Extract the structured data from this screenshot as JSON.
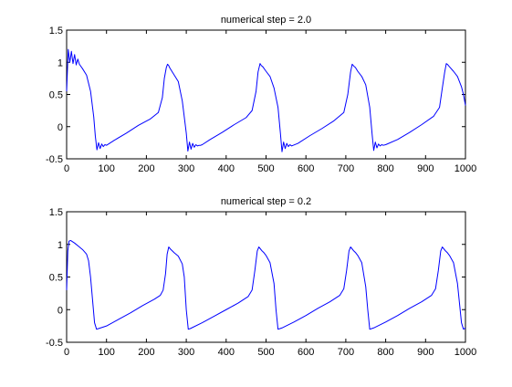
{
  "chart_data": [
    {
      "type": "line",
      "title": "numerical step = 2.0",
      "xlabel": "",
      "ylabel": "",
      "xlim": [
        0,
        1000
      ],
      "ylim": [
        -0.5,
        1.5
      ],
      "x_ticks": [
        0,
        100,
        200,
        300,
        400,
        500,
        600,
        700,
        800,
        900,
        1000
      ],
      "y_ticks": [
        -0.5,
        0,
        0.5,
        1,
        1.5
      ],
      "x_tick_labels": [
        "0",
        "100",
        "200",
        "300",
        "400",
        "500",
        "600",
        "700",
        "800",
        "900",
        "1000"
      ],
      "y_tick_labels": [
        "-0.5",
        "0",
        "0.5",
        "1",
        "1.5"
      ],
      "grid": false,
      "line_color": "#0000ff",
      "series": [
        {
          "x": [
            0,
            4,
            8,
            12,
            16,
            20,
            24,
            28,
            32,
            40,
            50,
            60,
            68,
            72,
            76,
            80,
            84,
            88,
            92,
            96,
            100,
            120,
            150,
            180,
            210,
            230,
            240,
            245,
            250,
            253,
            256,
            258,
            262,
            270,
            280,
            290,
            300,
            304,
            308,
            312,
            316,
            320,
            324,
            328,
            332,
            336,
            340,
            360,
            390,
            420,
            450,
            465,
            475,
            480,
            485,
            488,
            492,
            500,
            510,
            520,
            530,
            536,
            540,
            544,
            548,
            552,
            556,
            560,
            564,
            568,
            580,
            610,
            640,
            670,
            695,
            705,
            712,
            716,
            720,
            724,
            730,
            740,
            750,
            760,
            766,
            770,
            774,
            778,
            782,
            786,
            790,
            794,
            800,
            830,
            860,
            890,
            920,
            935,
            942,
            948,
            952,
            956,
            960,
            970,
            980,
            990,
            995,
            1000
          ],
          "y": [
            0.55,
            1.2,
            1.0,
            1.17,
            0.98,
            1.12,
            0.96,
            1.05,
            0.97,
            0.9,
            0.8,
            0.55,
            0.15,
            -0.15,
            -0.36,
            -0.25,
            -0.34,
            -0.27,
            -0.31,
            -0.28,
            -0.29,
            -0.21,
            -0.1,
            0.02,
            0.12,
            0.22,
            0.45,
            0.75,
            0.92,
            0.97,
            0.95,
            0.92,
            0.88,
            0.8,
            0.7,
            0.4,
            -0.1,
            -0.38,
            -0.24,
            -0.35,
            -0.26,
            -0.32,
            -0.28,
            -0.3,
            -0.29,
            -0.29,
            -0.28,
            -0.2,
            -0.09,
            0.03,
            0.14,
            0.25,
            0.55,
            0.85,
            0.98,
            0.95,
            0.93,
            0.86,
            0.78,
            0.6,
            0.3,
            -0.1,
            -0.39,
            -0.24,
            -0.34,
            -0.26,
            -0.31,
            -0.28,
            -0.3,
            -0.29,
            -0.26,
            -0.14,
            -0.03,
            0.09,
            0.22,
            0.5,
            0.85,
            0.97,
            0.94,
            0.92,
            0.86,
            0.78,
            0.65,
            0.3,
            -0.12,
            -0.37,
            -0.24,
            -0.33,
            -0.27,
            -0.3,
            -0.28,
            -0.29,
            -0.28,
            -0.2,
            -0.09,
            0.03,
            0.16,
            0.3,
            0.6,
            0.85,
            0.98,
            0.96,
            0.93,
            0.86,
            0.78,
            0.62,
            0.5,
            0.33
          ]
        }
      ]
    },
    {
      "type": "line",
      "title": "numerical step = 0.2",
      "xlabel": "",
      "ylabel": "",
      "xlim": [
        0,
        1000
      ],
      "ylim": [
        -0.5,
        1.5
      ],
      "x_ticks": [
        0,
        100,
        200,
        300,
        400,
        500,
        600,
        700,
        800,
        900,
        1000
      ],
      "y_ticks": [
        -0.5,
        0,
        0.5,
        1,
        1.5
      ],
      "x_tick_labels": [
        "0",
        "100",
        "200",
        "300",
        "400",
        "500",
        "600",
        "700",
        "800",
        "900",
        "1000"
      ],
      "y_tick_labels": [
        "-0.5",
        "0",
        "0.5",
        "1",
        "1.5"
      ],
      "grid": false,
      "line_color": "#0000ff",
      "series": [
        {
          "x": [
            0,
            3,
            6,
            10,
            20,
            30,
            40,
            50,
            55,
            60,
            65,
            70,
            75,
            80,
            100,
            130,
            160,
            190,
            220,
            235,
            242,
            248,
            252,
            256,
            260,
            265,
            270,
            280,
            290,
            295,
            300,
            305,
            310,
            340,
            370,
            400,
            430,
            455,
            465,
            472,
            478,
            482,
            486,
            490,
            495,
            500,
            510,
            520,
            525,
            530,
            535,
            540,
            570,
            600,
            630,
            660,
            685,
            695,
            702,
            708,
            712,
            716,
            720,
            725,
            730,
            740,
            750,
            755,
            760,
            765,
            770,
            800,
            830,
            860,
            890,
            915,
            925,
            932,
            938,
            942,
            946,
            950,
            955,
            960,
            970,
            980,
            985,
            990,
            995,
            1000
          ],
          "y": [
            0.3,
            0.9,
            1.05,
            1.06,
            1.02,
            0.97,
            0.92,
            0.85,
            0.75,
            0.5,
            0.15,
            -0.2,
            -0.3,
            -0.29,
            -0.25,
            -0.15,
            -0.05,
            0.06,
            0.16,
            0.22,
            0.3,
            0.55,
            0.85,
            0.96,
            0.93,
            0.9,
            0.87,
            0.82,
            0.7,
            0.5,
            0.0,
            -0.3,
            -0.29,
            -0.2,
            -0.1,
            0.0,
            0.1,
            0.2,
            0.3,
            0.6,
            0.9,
            0.96,
            0.93,
            0.9,
            0.87,
            0.83,
            0.72,
            0.4,
            0.0,
            -0.3,
            -0.29,
            -0.28,
            -0.19,
            -0.09,
            0.02,
            0.12,
            0.22,
            0.32,
            0.6,
            0.9,
            0.96,
            0.93,
            0.9,
            0.87,
            0.83,
            0.72,
            0.35,
            0.0,
            -0.3,
            -0.29,
            -0.28,
            -0.19,
            -0.09,
            0.02,
            0.12,
            0.22,
            0.32,
            0.6,
            0.9,
            0.96,
            0.93,
            0.9,
            0.87,
            0.83,
            0.72,
            0.4,
            0.1,
            -0.2,
            -0.3,
            -0.28
          ]
        }
      ]
    }
  ]
}
